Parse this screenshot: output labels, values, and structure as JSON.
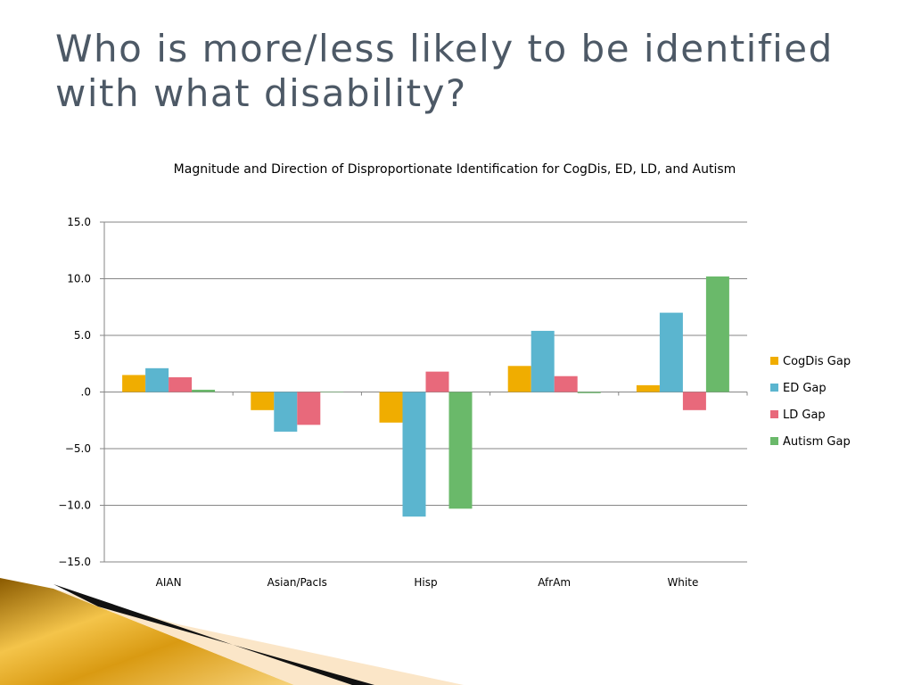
{
  "slide": {
    "title": "Who is more/less likely to be identified with what disability?"
  },
  "colors": {
    "title": "#4d5966",
    "cogdis": "#f0ad00",
    "ed": "#5bb5cf",
    "ld": "#e8697b",
    "autism": "#6ab96a",
    "gridline": "#868686",
    "accent_gold": "#e0a020"
  },
  "chart_data": {
    "type": "bar",
    "title": "Magnitude and Direction of Disproportionate Identification for CogDis, ED, LD, and Autism",
    "xlabel": "",
    "ylabel": "",
    "categories": [
      "AIAN",
      "Asian/PacIs",
      "Hisp",
      "AfrAm",
      "White"
    ],
    "ylim": [
      -15,
      15
    ],
    "yticks": [
      15,
      10,
      5,
      0,
      -5,
      -10,
      -15
    ],
    "ytick_labels": [
      "15.0",
      "10.0",
      "5.0",
      ".0",
      "−5.0",
      "−10.0",
      "−15.0"
    ],
    "grid": true,
    "legend_position": "right",
    "series": [
      {
        "name": "CogDis Gap",
        "color": "#f0ad00",
        "values": [
          1.5,
          -1.6,
          -2.7,
          2.3,
          0.6
        ]
      },
      {
        "name": "ED Gap",
        "color": "#5bb5cf",
        "values": [
          2.1,
          -3.5,
          -11.0,
          5.4,
          7.0
        ]
      },
      {
        "name": "LD Gap",
        "color": "#e8697b",
        "values": [
          1.3,
          -2.9,
          1.8,
          1.4,
          -1.6
        ]
      },
      {
        "name": "Autism Gap",
        "color": "#6ab96a",
        "values": [
          0.2,
          0.0,
          -10.3,
          -0.1,
          10.2
        ]
      }
    ]
  }
}
